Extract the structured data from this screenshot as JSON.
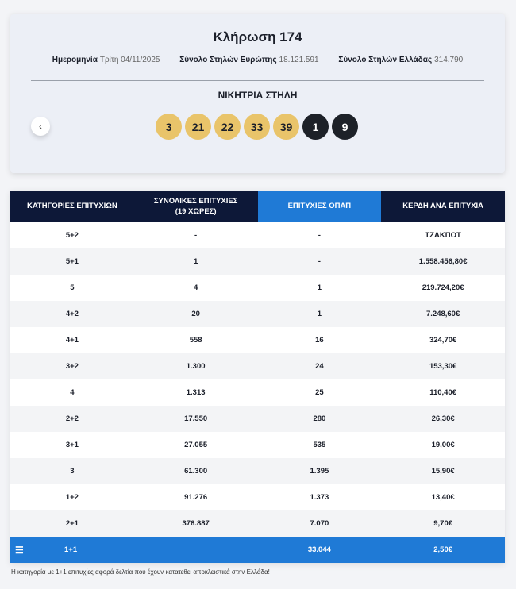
{
  "draw": {
    "title": "Κλήρωση 174",
    "meta": [
      {
        "label": "Ημερομηνία",
        "value": "Τρίτη 04/11/2025"
      },
      {
        "label": "Σύνολο Στηλών Ευρώπης",
        "value": "18.121.591"
      },
      {
        "label": "Σύνολο Στηλών Ελλάδας",
        "value": "314.790"
      }
    ],
    "winning_label": "ΝΙΚΗΤΡΙΑ ΣΤΗΛΗ",
    "prev_icon": "‹",
    "numbers": [
      "3",
      "21",
      "22",
      "33",
      "39"
    ],
    "stars": [
      "1",
      "9"
    ]
  },
  "table": {
    "headers": [
      "ΚΑΤΗΓΟΡΙΕΣ ΕΠΙΤΥΧΙΩΝ",
      "ΣΥΝΟΛΙΚΕΣ ΕΠΙΤΥΧΙΕΣ",
      "(19 ΧΩΡΕΣ)",
      "ΕΠΙΤΥΧΙΕΣ ΟΠΑΠ",
      "ΚΕΡΔΗ ΑΝΑ ΕΠΙΤΥΧΙΑ"
    ],
    "rows": [
      [
        "5+2",
        "-",
        "-",
        "ΤΖΑΚΠΟΤ"
      ],
      [
        "5+1",
        "1",
        "-",
        "1.558.456,80€"
      ],
      [
        "5",
        "4",
        "1",
        "219.724,20€"
      ],
      [
        "4+2",
        "20",
        "1",
        "7.248,60€"
      ],
      [
        "4+1",
        "558",
        "16",
        "324,70€"
      ],
      [
        "3+2",
        "1.300",
        "24",
        "153,30€"
      ],
      [
        "4",
        "1.313",
        "25",
        "110,40€"
      ],
      [
        "2+2",
        "17.550",
        "280",
        "26,30€"
      ],
      [
        "3+1",
        "27.055",
        "535",
        "19,00€"
      ],
      [
        "3",
        "61.300",
        "1.395",
        "15,90€"
      ],
      [
        "1+2",
        "91.276",
        "1.373",
        "13,40€"
      ],
      [
        "2+1",
        "376.887",
        "7.070",
        "9,70€"
      ]
    ],
    "last_row": {
      "category": "1+1",
      "total": "",
      "opap": "33.044",
      "prize": "2,50€",
      "icon": "greek-flag-icon"
    },
    "note": "Η κατηγορία με 1+1 επιτυχίες αφορά δελτία που έχουν κατατεθεί αποκλειστικά στην Ελλάδα!"
  },
  "colors": {
    "navy": "#0d1838",
    "blue": "#1f7ad6",
    "gold": "#e9c46a",
    "dark": "#1d2128"
  }
}
